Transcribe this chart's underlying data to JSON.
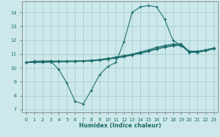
{
  "xlabel": "Humidex (Indice chaleur)",
  "bg_color": "#cce8ea",
  "grid_color": "#aacfd2",
  "line_color": "#1a6b6b",
  "xlim": [
    -0.5,
    23.5
  ],
  "ylim": [
    6.8,
    14.8
  ],
  "xticks": [
    0,
    1,
    2,
    3,
    4,
    5,
    6,
    7,
    8,
    9,
    10,
    11,
    12,
    13,
    14,
    15,
    16,
    17,
    18,
    19,
    20,
    21,
    22,
    23
  ],
  "yticks": [
    7,
    8,
    9,
    10,
    11,
    12,
    13,
    14
  ],
  "line1_x": [
    0,
    1,
    2,
    3,
    4,
    5,
    6,
    7,
    8,
    9,
    10,
    11,
    12,
    13,
    14,
    15,
    16,
    17,
    18,
    19,
    20,
    21,
    22,
    23
  ],
  "line1_y": [
    10.4,
    10.5,
    10.5,
    10.5,
    9.9,
    8.9,
    7.6,
    7.4,
    8.4,
    9.5,
    10.1,
    10.4,
    11.9,
    14.0,
    14.4,
    14.5,
    14.4,
    13.5,
    12.0,
    11.6,
    11.2,
    11.2,
    11.3,
    11.4
  ],
  "line2_x": [
    0,
    1,
    2,
    3,
    4,
    5,
    6,
    7,
    8,
    9,
    10,
    11,
    12,
    13,
    14,
    15,
    16,
    17,
    18,
    19,
    20,
    21,
    22,
    23
  ],
  "line2_y": [
    10.4,
    10.45,
    10.45,
    10.5,
    10.5,
    10.5,
    10.5,
    10.52,
    10.54,
    10.6,
    10.7,
    10.75,
    10.85,
    10.95,
    11.1,
    11.25,
    11.4,
    11.55,
    11.65,
    11.7,
    11.2,
    11.2,
    11.3,
    11.45
  ],
  "line3_x": [
    0,
    1,
    2,
    3,
    4,
    5,
    6,
    7,
    8,
    9,
    10,
    11,
    12,
    13,
    14,
    15,
    16,
    17,
    18,
    19,
    20,
    21,
    22,
    23
  ],
  "line3_y": [
    10.4,
    10.42,
    10.43,
    10.45,
    10.47,
    10.48,
    10.5,
    10.52,
    10.55,
    10.6,
    10.68,
    10.78,
    10.9,
    11.0,
    11.15,
    11.3,
    11.5,
    11.62,
    11.72,
    11.75,
    11.18,
    11.18,
    11.28,
    11.42
  ],
  "line4_x": [
    0,
    1,
    2,
    3,
    4,
    5,
    6,
    7,
    8,
    9,
    10,
    11,
    12,
    13,
    14,
    15,
    16,
    17,
    18,
    19,
    20,
    21,
    22,
    23
  ],
  "line4_y": [
    10.4,
    10.4,
    10.4,
    10.42,
    10.44,
    10.45,
    10.46,
    10.48,
    10.5,
    10.55,
    10.62,
    10.7,
    10.8,
    10.92,
    11.05,
    11.18,
    11.35,
    11.48,
    11.58,
    11.62,
    11.12,
    11.12,
    11.22,
    11.38
  ]
}
